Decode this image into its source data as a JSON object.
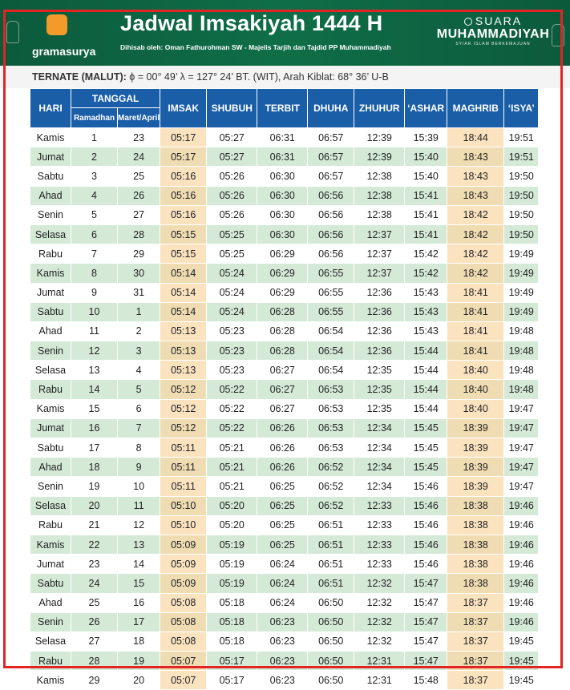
{
  "header": {
    "brand": "gramasurya",
    "title": "Jadwal Imsakiyah 1444 H",
    "subtitle": "Dihisab oleh: Oman Fathurohman SW - Majelis Tarjih dan Tajdid PP Muhammadiyah",
    "publisher_line1": "SUARA",
    "publisher_line2": "MUHAMMADIYAH",
    "publisher_tagline": "SYIAR ISLAM BERKEMAJUAN"
  },
  "location": {
    "name": "TERNATE (MALUT):",
    "details": "ϕ = 00° 49’  λ = 127° 24’ BT. (WIT), Arah Kiblat: 68° 36’ U-B"
  },
  "colors": {
    "header_green": "#0f6e48",
    "table_header_blue": "#1a5ea8",
    "row_green": "#d4ead7",
    "highlight_peach": "#fbe3c0",
    "frame_red": "#e32424"
  },
  "table": {
    "headers": {
      "hari": "HARI",
      "tanggal": "TANGGAL",
      "ramadhan": "Ramadhan",
      "maret_april": "Maret/April",
      "imsak": "IMSAK",
      "shubuh": "SHUBUH",
      "terbit": "TERBIT",
      "dhuha": "DHUHA",
      "zhuhur": "ZHUHUR",
      "ashar": "‘ASHAR",
      "maghrib": "MAGHRIB",
      "isya": "‘ISYA’"
    },
    "rows": [
      [
        "Kamis",
        "1",
        "23",
        "05:17",
        "05:27",
        "06:31",
        "06:57",
        "12:39",
        "15:39",
        "18:44",
        "19:51"
      ],
      [
        "Jumat",
        "2",
        "24",
        "05:17",
        "05:27",
        "06:31",
        "06:57",
        "12:39",
        "15:40",
        "18:43",
        "19:51"
      ],
      [
        "Sabtu",
        "3",
        "25",
        "05:16",
        "05:26",
        "06:30",
        "06:57",
        "12:38",
        "15:40",
        "18:43",
        "19:50"
      ],
      [
        "Ahad",
        "4",
        "26",
        "05:16",
        "05:26",
        "06:30",
        "06:56",
        "12:38",
        "15:41",
        "18:43",
        "19:50"
      ],
      [
        "Senin",
        "5",
        "27",
        "05:16",
        "05:26",
        "06:30",
        "06:56",
        "12:38",
        "15:41",
        "18:42",
        "19:50"
      ],
      [
        "Selasa",
        "6",
        "28",
        "05:15",
        "05:25",
        "06:30",
        "06:56",
        "12:37",
        "15:41",
        "18:42",
        "19:50"
      ],
      [
        "Rabu",
        "7",
        "29",
        "05:15",
        "05:25",
        "06:29",
        "06:56",
        "12:37",
        "15:42",
        "18:42",
        "19:49"
      ],
      [
        "Kamis",
        "8",
        "30",
        "05:14",
        "05:24",
        "06:29",
        "06:55",
        "12:37",
        "15:42",
        "18:42",
        "19:49"
      ],
      [
        "Jumat",
        "9",
        "31",
        "05:14",
        "05:24",
        "06:29",
        "06:55",
        "12:36",
        "15:43",
        "18:41",
        "19:49"
      ],
      [
        "Sabtu",
        "10",
        "1",
        "05:14",
        "05:24",
        "06:28",
        "06:55",
        "12:36",
        "15:43",
        "18:41",
        "19:49"
      ],
      [
        "Ahad",
        "11",
        "2",
        "05:13",
        "05:23",
        "06:28",
        "06:54",
        "12:36",
        "15:43",
        "18:41",
        "19:48"
      ],
      [
        "Senin",
        "12",
        "3",
        "05:13",
        "05:23",
        "06:28",
        "06:54",
        "12:36",
        "15:44",
        "18:41",
        "19:48"
      ],
      [
        "Selasa",
        "13",
        "4",
        "05:13",
        "05:23",
        "06:27",
        "06:54",
        "12:35",
        "15:44",
        "18:40",
        "19:48"
      ],
      [
        "Rabu",
        "14",
        "5",
        "05:12",
        "05:22",
        "06:27",
        "06:53",
        "12:35",
        "15:44",
        "18:40",
        "19:48"
      ],
      [
        "Kamis",
        "15",
        "6",
        "05:12",
        "05:22",
        "06:27",
        "06:53",
        "12:35",
        "15:44",
        "18:40",
        "19:47"
      ],
      [
        "Jumat",
        "16",
        "7",
        "05:12",
        "05:22",
        "06:26",
        "06:53",
        "12:34",
        "15:45",
        "18:39",
        "19:47"
      ],
      [
        "Sabtu",
        "17",
        "8",
        "05:11",
        "05:21",
        "06:26",
        "06:53",
        "12:34",
        "15:45",
        "18:39",
        "19:47"
      ],
      [
        "Ahad",
        "18",
        "9",
        "05:11",
        "05:21",
        "06:26",
        "06:52",
        "12:34",
        "15:45",
        "18:39",
        "19:47"
      ],
      [
        "Senin",
        "19",
        "10",
        "05:11",
        "05:21",
        "06:25",
        "06:52",
        "12:34",
        "15:46",
        "18:39",
        "19:47"
      ],
      [
        "Selasa",
        "20",
        "11",
        "05:10",
        "05:20",
        "06:25",
        "06:52",
        "12:33",
        "15:46",
        "18:38",
        "19:46"
      ],
      [
        "Rabu",
        "21",
        "12",
        "05:10",
        "05:20",
        "06:25",
        "06:51",
        "12:33",
        "15:46",
        "18:38",
        "19:46"
      ],
      [
        "Kamis",
        "22",
        "13",
        "05:09",
        "05:19",
        "06:25",
        "06:51",
        "12:33",
        "15:46",
        "18:38",
        "19:46"
      ],
      [
        "Jumat",
        "23",
        "14",
        "05:09",
        "05:19",
        "06:24",
        "06:51",
        "12:33",
        "15:46",
        "18:38",
        "19:46"
      ],
      [
        "Sabtu",
        "24",
        "15",
        "05:09",
        "05:19",
        "06:24",
        "06:51",
        "12:32",
        "15:47",
        "18:38",
        "19:46"
      ],
      [
        "Ahad",
        "25",
        "16",
        "05:08",
        "05:18",
        "06:24",
        "06:50",
        "12:32",
        "15:47",
        "18:37",
        "19:46"
      ],
      [
        "Senin",
        "26",
        "17",
        "05:08",
        "05:18",
        "06:23",
        "06:50",
        "12:32",
        "15:47",
        "18:37",
        "19:46"
      ],
      [
        "Selasa",
        "27",
        "18",
        "05:08",
        "05:18",
        "06:23",
        "06:50",
        "12:32",
        "15:47",
        "18:37",
        "19:45"
      ],
      [
        "Rabu",
        "28",
        "19",
        "05:07",
        "05:17",
        "06:23",
        "06:50",
        "12:31",
        "15:47",
        "18:37",
        "19:45"
      ],
      [
        "Kamis",
        "29",
        "20",
        "05:07",
        "05:17",
        "06:23",
        "06:50",
        "12:31",
        "15:48",
        "18:37",
        "19:45"
      ]
    ]
  }
}
